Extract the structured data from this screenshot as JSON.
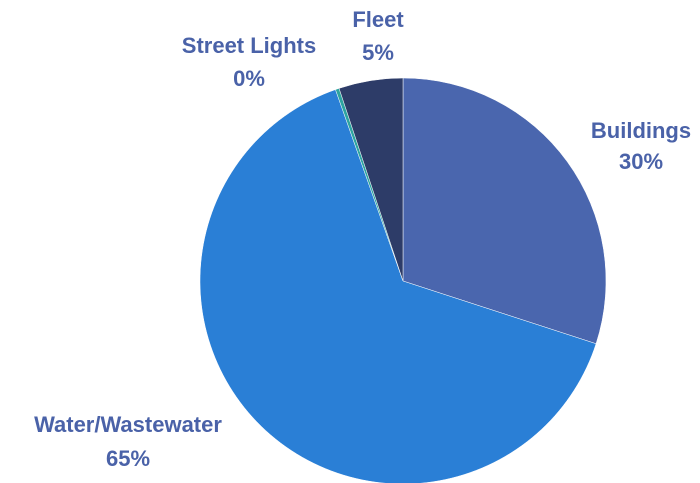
{
  "chart_data": {
    "type": "pie",
    "start": "12 o'clock",
    "direction": "clockwise",
    "slices": [
      {
        "name": "Buildings",
        "value": 30,
        "label": "30%",
        "color": "#4a66ae"
      },
      {
        "name": "Water/Wastewater",
        "value": 64.6,
        "label": "65%",
        "color": "#2a7fd6"
      },
      {
        "name": "Street Lights",
        "value": 0.3,
        "label": "0%",
        "color": "#2ea4a0"
      },
      {
        "name": "Fleet",
        "value": 5.1,
        "label": "5%",
        "color": "#2d3c68"
      }
    ],
    "label_color": "#4a62a8"
  }
}
